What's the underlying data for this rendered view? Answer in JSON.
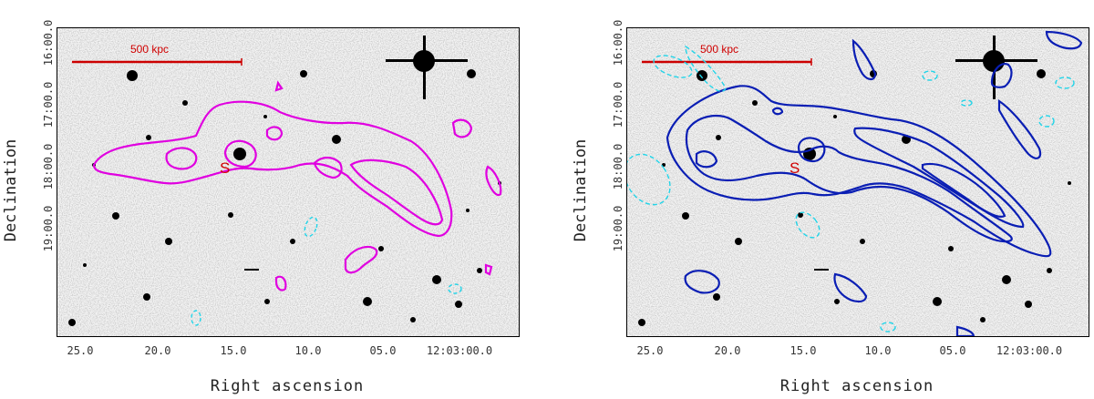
{
  "colors": {
    "magenta_contour": "#e000e0",
    "blue_contour": "#0a1eb4",
    "cyan_contour": "#22d4e8",
    "scale_bar": "#cc0000"
  },
  "panels": [
    {
      "id": "left",
      "x_axis_label": "Right ascension",
      "y_axis_label": "Declination",
      "x_ticks": [
        "25.0",
        "20.0",
        "15.0",
        "10.0",
        "05.0",
        "12:03:00.0"
      ],
      "y_ticks": [
        "16:00.0",
        "17:00.0",
        "18:00.0",
        "19:00.0"
      ],
      "scale_bar_label": "500 kpc",
      "source_label": "S"
    },
    {
      "id": "right",
      "x_axis_label": "Right ascension",
      "y_axis_label": "Declination",
      "x_ticks": [
        "25.0",
        "20.0",
        "15.0",
        "10.0",
        "05.0",
        "12:03:00.0"
      ],
      "y_ticks": [
        "16:00.0",
        "17:00.0",
        "18:00.0",
        "19:00.0"
      ],
      "scale_bar_label": "500 kpc",
      "source_label": "S"
    }
  ]
}
